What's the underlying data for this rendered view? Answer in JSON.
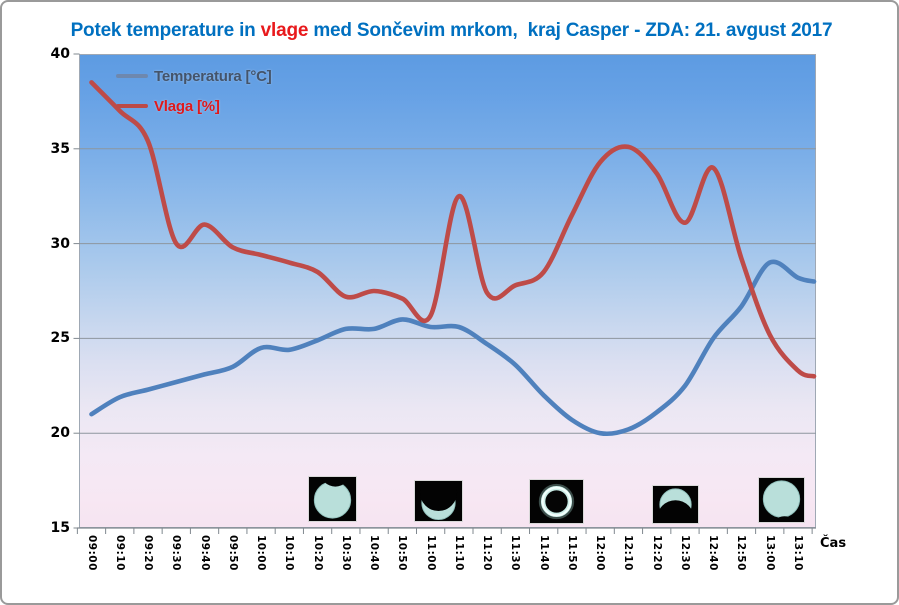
{
  "title": {
    "pre": "Potek temperature in ",
    "highlight": "vlage",
    "post": " med Sončevim mrkom,  kraj Casper - ZDA: 21. avgust 2017"
  },
  "legend": [
    {
      "label": "Temperatura [°C]",
      "swatch_color": "#6e88ae",
      "text_color": "#44546a"
    },
    {
      "label": "Vlaga [%]",
      "swatch_color": "#bc4a47",
      "text_color": "#e0191c"
    }
  ],
  "axes": {
    "x_title": "Čas",
    "y_tick_labels": [
      "15",
      "20",
      "25",
      "30",
      "35",
      "40"
    ]
  },
  "colors": {
    "title_blue": "#0070c0",
    "title_red": "#e8191c",
    "gridline": "#8e969e",
    "axis_line": "#80888f",
    "temperature_line": "#4f81bd",
    "humidity_line": "#be4b48"
  },
  "chart_data": {
    "type": "line",
    "title": "Potek temperature in vlage med Sončevim mrkom,  kraj Casper - ZDA: 21. avgust 2017",
    "xlabel": "Čas",
    "ylabel": "",
    "ylim": [
      15,
      40
    ],
    "y_ticks": [
      15,
      20,
      25,
      30,
      35,
      40
    ],
    "grid": true,
    "legend_position": "top-left",
    "categories": [
      "09:00",
      "09:10",
      "09:20",
      "09:30",
      "09:40",
      "09:50",
      "10:00",
      "10:10",
      "10:20",
      "10:30",
      "10:40",
      "10:50",
      "11:00",
      "11:10",
      "11:20",
      "11:30",
      "11:40",
      "11:50",
      "12:00",
      "12:10",
      "12:20",
      "12:30",
      "12:40",
      "12:50",
      "13:00",
      "13:10"
    ],
    "series": [
      {
        "name": "Temperatura [°C]",
        "color": "#4f81bd",
        "values": [
          21.0,
          21.9,
          22.3,
          22.7,
          23.1,
          23.5,
          24.5,
          24.4,
          24.9,
          25.5,
          25.5,
          26.0,
          25.6,
          25.6,
          24.7,
          23.6,
          22.0,
          20.7,
          20.0,
          20.2,
          21.1,
          22.5,
          25.0,
          26.7,
          29.0,
          28.2
        ],
        "edge_value": 28.0
      },
      {
        "name": "Vlaga [%]",
        "color": "#be4b48",
        "values": [
          38.5,
          37.0,
          35.4,
          30.0,
          31.0,
          29.8,
          29.4,
          29.0,
          28.5,
          27.2,
          27.5,
          27.1,
          26.2,
          32.5,
          27.4,
          27.8,
          28.5,
          31.5,
          34.3,
          35.1,
          33.7,
          31.1,
          34.0,
          29.2,
          25.2,
          23.3
        ],
        "edge_value": 23.0
      }
    ]
  },
  "eclipse_photos": [
    {
      "name": "sun-partial-eclipse-start",
      "description": "sun disk with small bite at top"
    },
    {
      "name": "sun-deep-crescent",
      "description": "thin crescent, horns up"
    },
    {
      "name": "sun-totality-corona",
      "description": "total eclipse with corona ring"
    },
    {
      "name": "sun-crescent-reappearing",
      "description": "bright arc on top, dark below"
    },
    {
      "name": "sun-partial-eclipse-end",
      "description": "sun disk with small bite at bottom"
    }
  ]
}
